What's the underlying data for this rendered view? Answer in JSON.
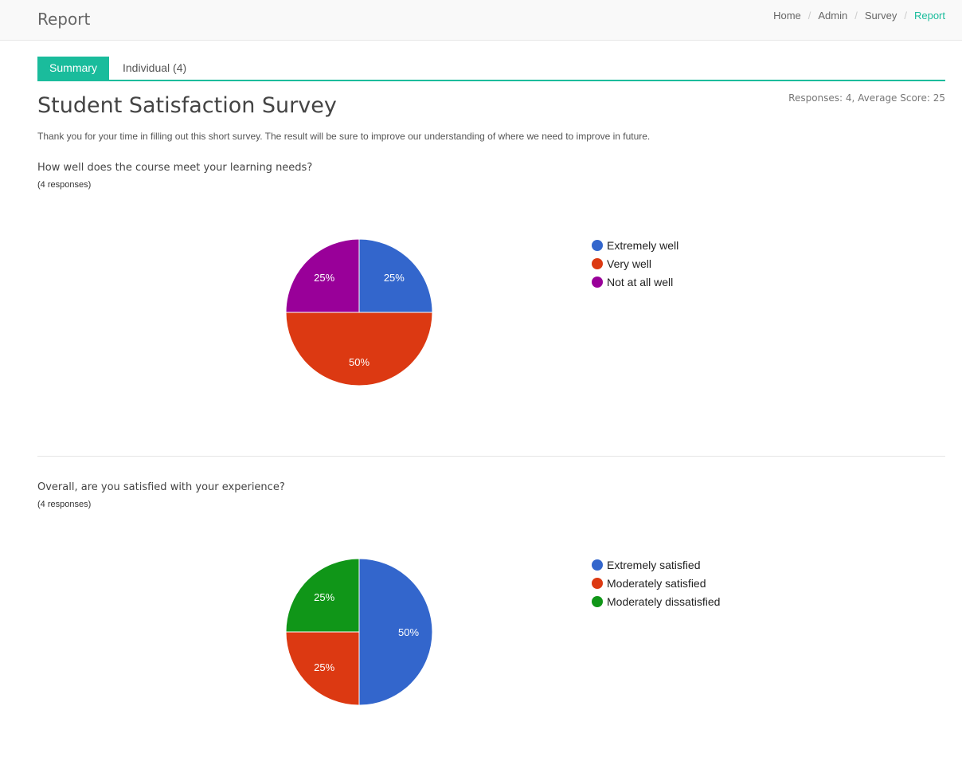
{
  "header": {
    "title": "Report",
    "breadcrumb": [
      "Home",
      "Admin",
      "Survey",
      "Report"
    ]
  },
  "tabs": {
    "summary": "Summary",
    "individual": "Individual (4)"
  },
  "meta": "Responses: 4, Average Score: 25",
  "survey": {
    "title": "Student Satisfaction Survey",
    "description": "Thank you for your time in filling out this short survey. The result will be sure to improve our understanding of where we need to improve in future."
  },
  "questions": [
    {
      "question": "How well does the course meet your learning needs?",
      "responses": "(4 responses)",
      "legend": [
        "Extremely well",
        "Very well",
        "Not at all well"
      ],
      "percent_labels": [
        "25%",
        "50%",
        "25%"
      ]
    },
    {
      "question": "Overall, are you satisfied with your experience?",
      "responses": "(4 responses)",
      "legend": [
        "Extremely satisfied",
        "Moderately satisfied",
        "Moderately dissatisfied"
      ],
      "percent_labels": [
        "50%",
        "25%",
        "25%"
      ]
    }
  ],
  "colors": {
    "accent": "#1abc9c",
    "blue": "#3366cc",
    "red": "#dc3912",
    "purple": "#990099",
    "green": "#109618"
  },
  "chart_data": [
    {
      "type": "pie",
      "title": "How well does the course meet your learning needs?",
      "categories": [
        "Extremely well",
        "Very well",
        "Not at all well"
      ],
      "values": [
        25,
        50,
        25
      ],
      "colors": [
        "#3366cc",
        "#dc3912",
        "#990099"
      ],
      "legend": "right"
    },
    {
      "type": "pie",
      "title": "Overall, are you satisfied with your experience?",
      "categories": [
        "Extremely satisfied",
        "Moderately satisfied",
        "Moderately dissatisfied"
      ],
      "values": [
        50,
        25,
        25
      ],
      "colors": [
        "#3366cc",
        "#dc3912",
        "#109618"
      ],
      "legend": "right"
    }
  ]
}
